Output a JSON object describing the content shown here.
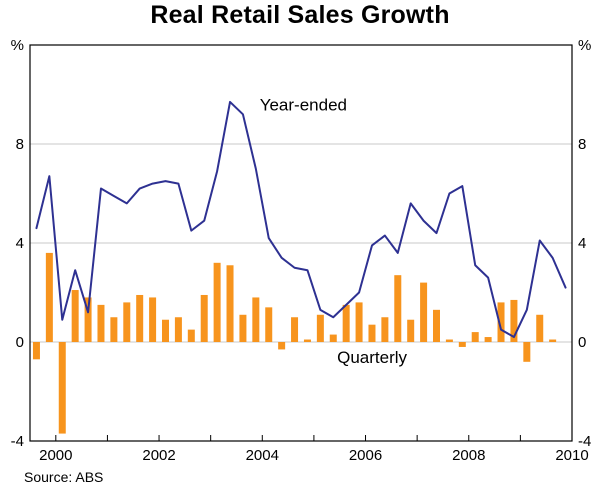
{
  "chart_data": {
    "type": "combo",
    "title": "Real Retail Sales Growth",
    "source": "Source: ABS",
    "ylabel": "%",
    "xlabel": "",
    "ylim": [
      -4,
      12
    ],
    "xlim": [
      1999.5,
      2010
    ],
    "yticks": [
      -4,
      0,
      4,
      8
    ],
    "xticks": [
      2000,
      2002,
      2004,
      2006,
      2008,
      2010
    ],
    "grid": true,
    "legend_position": "inline-annotations",
    "colors": {
      "grid": "#c8c8c8",
      "axis": "#000000",
      "background": "#ffffff"
    },
    "annotations": [
      {
        "name": "year-ended-label",
        "text": "Year-ended",
        "x": 2003.95,
        "y": 9.6,
        "color": "#2e3192"
      },
      {
        "name": "quarterly-label",
        "text": "Quarterly",
        "x": 2005.45,
        "y": -0.6,
        "color": "#f7941d"
      }
    ],
    "series": [
      {
        "name": "Year-ended",
        "type": "line",
        "color": "#2e3192",
        "x": [
          1999.625,
          1999.875,
          2000.125,
          2000.375,
          2000.625,
          2000.875,
          2001.125,
          2001.375,
          2001.625,
          2001.875,
          2002.125,
          2002.375,
          2002.625,
          2002.875,
          2003.125,
          2003.375,
          2003.625,
          2003.875,
          2004.125,
          2004.375,
          2004.625,
          2004.875,
          2005.125,
          2005.375,
          2005.625,
          2005.875,
          2006.125,
          2006.375,
          2006.625,
          2006.875,
          2007.125,
          2007.375,
          2007.625,
          2007.875,
          2008.125,
          2008.375,
          2008.625,
          2008.875,
          2009.125,
          2009.375,
          2009.625,
          2009.875
        ],
        "values": [
          4.6,
          6.7,
          0.9,
          2.9,
          1.2,
          6.2,
          5.9,
          5.6,
          6.2,
          6.4,
          6.5,
          6.4,
          4.5,
          4.9,
          6.9,
          9.7,
          9.2,
          7.0,
          4.2,
          3.4,
          3.0,
          2.9,
          1.3,
          1.0,
          1.5,
          2.0,
          3.9,
          4.3,
          3.6,
          5.6,
          4.9,
          4.4,
          6.0,
          6.3,
          3.1,
          2.6,
          0.5,
          0.2,
          1.3,
          4.1,
          3.4,
          2.2
        ]
      },
      {
        "name": "Quarterly",
        "type": "bar",
        "color": "#f7941d",
        "x": [
          1999.625,
          1999.875,
          2000.125,
          2000.375,
          2000.625,
          2000.875,
          2001.125,
          2001.375,
          2001.625,
          2001.875,
          2002.125,
          2002.375,
          2002.625,
          2002.875,
          2003.125,
          2003.375,
          2003.625,
          2003.875,
          2004.125,
          2004.375,
          2004.625,
          2004.875,
          2005.125,
          2005.375,
          2005.625,
          2005.875,
          2006.125,
          2006.375,
          2006.625,
          2006.875,
          2007.125,
          2007.375,
          2007.625,
          2007.875,
          2008.125,
          2008.375,
          2008.625,
          2008.875,
          2009.125,
          2009.375,
          2009.625
        ],
        "values": [
          -0.7,
          3.6,
          -3.7,
          2.1,
          1.8,
          1.5,
          1.0,
          1.6,
          1.9,
          1.8,
          0.9,
          1.0,
          0.5,
          1.9,
          3.2,
          3.1,
          1.1,
          1.8,
          1.4,
          -0.3,
          1.0,
          0.1,
          1.1,
          0.3,
          1.5,
          1.6,
          0.7,
          1.0,
          2.7,
          0.9,
          2.4,
          1.3,
          0.1,
          -0.2,
          0.4,
          0.2,
          1.6,
          1.7,
          -0.8,
          1.1,
          0.1
        ]
      }
    ]
  }
}
